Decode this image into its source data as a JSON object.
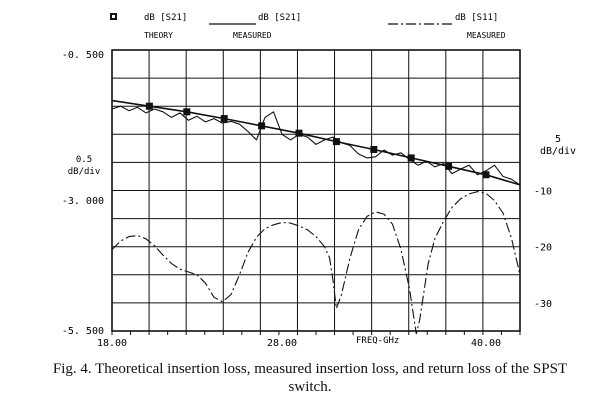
{
  "figure_caption": {
    "label": "Fig. 4.",
    "text": "Theoretical insertion loss, measured insertion loss, and return loss of the SPST switch."
  },
  "legend": {
    "theory": {
      "title": "dB [S21]",
      "sub": "THEORY"
    },
    "measured_s21": {
      "title": "dB [S21]",
      "sub": "MEASURED"
    },
    "measured_s11": {
      "title": "dB [S11]",
      "sub": "MEASURED"
    }
  },
  "chart_data": {
    "type": "line",
    "xlabel": "FREQ-GHz",
    "xlim": [
      18,
      42
    ],
    "x_ticks": [
      "18.00",
      "28.00",
      "40.00"
    ],
    "x_tick_values": [
      18,
      28,
      40
    ],
    "left_axis": {
      "label_top": "0.5",
      "label_bottom": "dB/div",
      "ylim": [
        -5.5,
        -0.5
      ],
      "tick_labels": [
        "-0. 500",
        "-3. 000",
        "-5. 500"
      ],
      "tick_values": [
        -0.5,
        -3.0,
        -5.5
      ]
    },
    "right_axis": {
      "label_top": "5",
      "label_bottom": "dB/div",
      "ylim": [
        -35,
        15
      ],
      "tick_labels": [
        "-10",
        "-20",
        "-30"
      ],
      "tick_values": [
        -10,
        -20,
        -30
      ]
    },
    "grid": true,
    "series": [
      {
        "name": "dB [S21] THEORY",
        "axis": "left",
        "style": "solid-markers",
        "x": [
          18.0,
          20.2,
          22.4,
          24.6,
          26.8,
          29.0,
          31.2,
          33.4,
          35.6,
          37.8,
          40.0,
          42.0
        ],
        "y": [
          -1.4,
          -1.5,
          -1.6,
          -1.72,
          -1.85,
          -1.98,
          -2.13,
          -2.27,
          -2.42,
          -2.57,
          -2.72,
          -2.9
        ]
      },
      {
        "name": "dB [S21] MEASURED",
        "axis": "left",
        "style": "solid",
        "x": [
          18.0,
          18.5,
          19.0,
          19.5,
          20.0,
          20.5,
          21.0,
          21.5,
          22.0,
          22.5,
          23.0,
          23.5,
          24.0,
          24.5,
          25.0,
          25.5,
          26.0,
          26.5,
          27.0,
          27.5,
          28.0,
          28.5,
          29.0,
          29.5,
          30.0,
          30.5,
          31.0,
          31.5,
          32.0,
          32.5,
          33.0,
          33.5,
          34.0,
          34.5,
          35.0,
          35.5,
          36.0,
          36.5,
          37.0,
          37.5,
          38.0,
          38.5,
          39.0,
          39.5,
          40.0,
          40.5,
          41.0,
          41.5,
          42.0
        ],
        "y": [
          -1.55,
          -1.5,
          -1.58,
          -1.52,
          -1.62,
          -1.55,
          -1.6,
          -1.7,
          -1.62,
          -1.75,
          -1.68,
          -1.78,
          -1.72,
          -1.8,
          -1.77,
          -1.82,
          -1.95,
          -2.1,
          -1.7,
          -1.6,
          -2.0,
          -2.1,
          -2.0,
          -2.05,
          -2.18,
          -2.1,
          -2.05,
          -2.15,
          -2.2,
          -2.35,
          -2.42,
          -2.4,
          -2.28,
          -2.37,
          -2.33,
          -2.45,
          -2.55,
          -2.48,
          -2.58,
          -2.52,
          -2.7,
          -2.62,
          -2.55,
          -2.72,
          -2.65,
          -2.55,
          -2.75,
          -2.8,
          -2.9
        ]
      },
      {
        "name": "dB [S11] MEASURED",
        "axis": "right",
        "style": "dash-dot",
        "x": [
          18.0,
          18.5,
          19.0,
          19.5,
          20.0,
          20.5,
          21.0,
          21.5,
          22.0,
          22.5,
          23.0,
          23.5,
          24.0,
          24.5,
          25.0,
          25.5,
          26.0,
          26.5,
          27.0,
          27.5,
          28.0,
          28.5,
          29.0,
          29.5,
          30.0,
          30.5,
          30.8,
          31.0,
          31.2,
          31.5,
          32.0,
          32.5,
          33.0,
          33.5,
          34.0,
          34.5,
          35.0,
          35.5,
          35.9,
          36.1,
          36.3,
          36.6,
          37.0,
          37.5,
          38.0,
          38.5,
          39.0,
          39.5,
          40.0,
          40.5,
          41.0,
          41.5,
          42.0
        ],
        "y": [
          -20.5,
          -19.0,
          -18.2,
          -18.0,
          -18.6,
          -19.8,
          -21.5,
          -23.0,
          -24.0,
          -24.5,
          -25.0,
          -26.5,
          -29.0,
          -29.8,
          -28.5,
          -25.0,
          -21.0,
          -18.3,
          -16.8,
          -16.1,
          -15.7,
          -15.8,
          -16.3,
          -17.0,
          -18.2,
          -20.0,
          -22.0,
          -26.0,
          -31.0,
          -28.5,
          -22.0,
          -17.0,
          -14.6,
          -13.8,
          -14.2,
          -16.0,
          -20.5,
          -27.5,
          -35.5,
          -33.0,
          -29.0,
          -23.0,
          -18.5,
          -15.5,
          -13.0,
          -11.5,
          -10.6,
          -10.2,
          -10.5,
          -11.8,
          -14.0,
          -18.5,
          -25.0
        ]
      }
    ]
  }
}
